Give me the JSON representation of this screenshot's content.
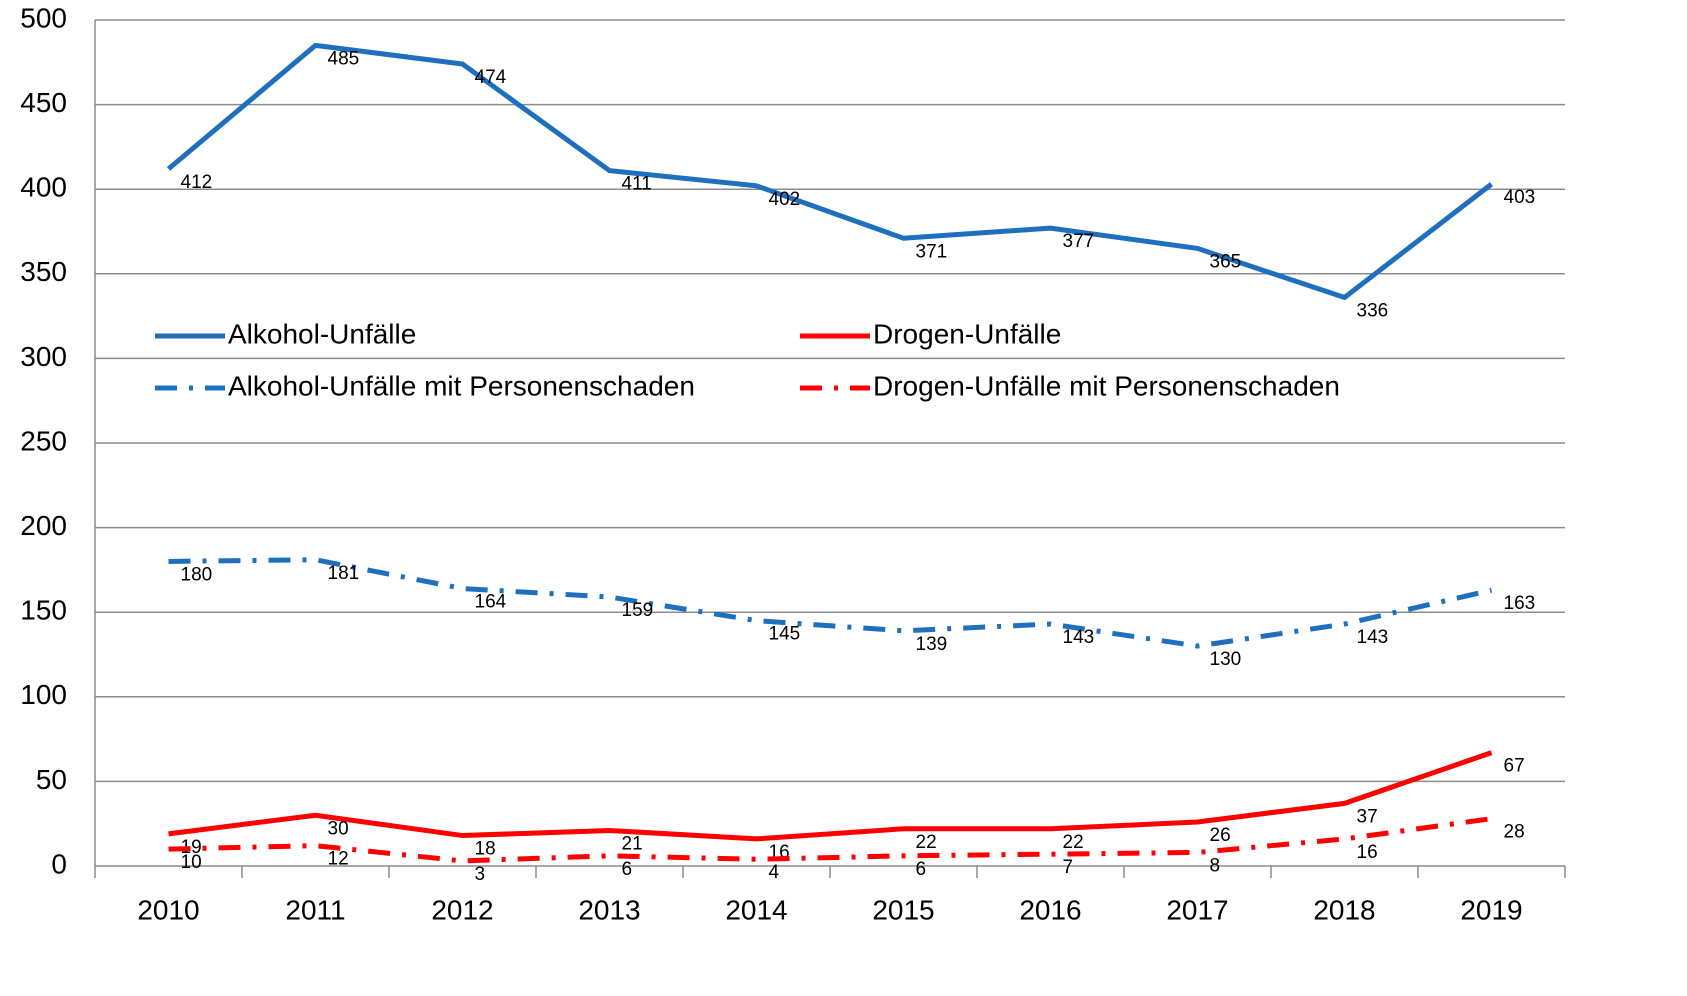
{
  "chart_data": {
    "type": "line",
    "categories": [
      "2010",
      "2011",
      "2012",
      "2013",
      "2014",
      "2015",
      "2016",
      "2017",
      "2018",
      "2019"
    ],
    "series": [
      {
        "name": "Alkohol-Unfälle",
        "color": "#1f6fbf",
        "style": "solid",
        "values": [
          412,
          485,
          474,
          411,
          402,
          371,
          377,
          365,
          336,
          403
        ]
      },
      {
        "name": "Drogen-Unfälle",
        "color": "#ff0000",
        "style": "solid",
        "values": [
          19,
          30,
          18,
          21,
          16,
          22,
          22,
          26,
          37,
          67
        ]
      },
      {
        "name": "Alkohol-Unfälle mit Personenschaden",
        "color": "#1f6fbf",
        "style": "dashdot",
        "values": [
          180,
          181,
          164,
          159,
          145,
          139,
          143,
          130,
          143,
          163
        ]
      },
      {
        "name": "Drogen-Unfälle mit Personenschaden",
        "color": "#ff0000",
        "style": "dashdot",
        "values": [
          10,
          12,
          3,
          6,
          4,
          6,
          7,
          8,
          16,
          28
        ]
      }
    ],
    "ylim": [
      0,
      500
    ],
    "yticks": [
      0,
      50,
      100,
      150,
      200,
      250,
      300,
      350,
      400,
      450,
      500
    ],
    "grid": true
  }
}
